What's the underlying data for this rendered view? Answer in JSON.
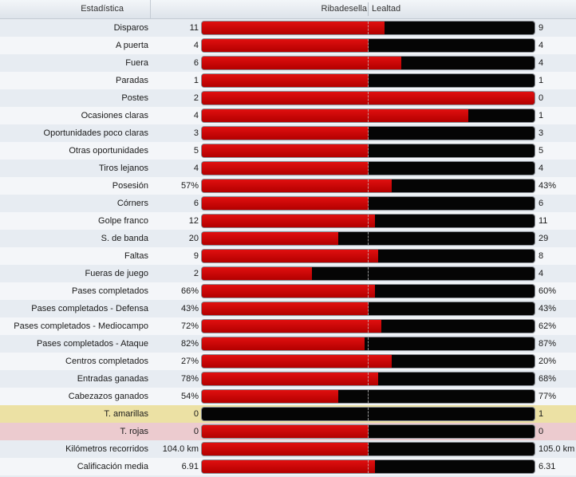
{
  "header": {
    "stat_label": "Estadística",
    "home_team": "Ribadesella",
    "away_team": "Lealtad"
  },
  "colors": {
    "home_bar": "#cc0000",
    "away_bar": "#000000",
    "yellow_card_row": "#ece1a4",
    "red_card_row": "#eccbcf"
  },
  "stats": [
    {
      "label": "Disparos",
      "home": "11",
      "away": "9",
      "home_share": 0.55,
      "highlight": ""
    },
    {
      "label": "A puerta",
      "home": "4",
      "away": "4",
      "home_share": 0.5,
      "highlight": ""
    },
    {
      "label": "Fuera",
      "home": "6",
      "away": "4",
      "home_share": 0.6,
      "highlight": ""
    },
    {
      "label": "Paradas",
      "home": "1",
      "away": "1",
      "home_share": 0.5,
      "highlight": ""
    },
    {
      "label": "Postes",
      "home": "2",
      "away": "0",
      "home_share": 1.0,
      "highlight": ""
    },
    {
      "label": "Ocasiones claras",
      "home": "4",
      "away": "1",
      "home_share": 0.8,
      "highlight": ""
    },
    {
      "label": "Oportunidades poco claras",
      "home": "3",
      "away": "3",
      "home_share": 0.5,
      "highlight": ""
    },
    {
      "label": "Otras oportunidades",
      "home": "5",
      "away": "5",
      "home_share": 0.5,
      "highlight": ""
    },
    {
      "label": "Tiros lejanos",
      "home": "4",
      "away": "4",
      "home_share": 0.5,
      "highlight": ""
    },
    {
      "label": "Posesión",
      "home": "57%",
      "away": "43%",
      "home_share": 0.57,
      "highlight": ""
    },
    {
      "label": "Córners",
      "home": "6",
      "away": "6",
      "home_share": 0.5,
      "highlight": ""
    },
    {
      "label": "Golpe franco",
      "home": "12",
      "away": "11",
      "home_share": 0.52,
      "highlight": ""
    },
    {
      "label": "S. de banda",
      "home": "20",
      "away": "29",
      "home_share": 0.41,
      "highlight": ""
    },
    {
      "label": "Faltas",
      "home": "9",
      "away": "8",
      "home_share": 0.53,
      "highlight": ""
    },
    {
      "label": "Fueras de juego",
      "home": "2",
      "away": "4",
      "home_share": 0.33,
      "highlight": ""
    },
    {
      "label": "Pases completados",
      "home": "66%",
      "away": "60%",
      "home_share": 0.52,
      "highlight": ""
    },
    {
      "label": "Pases completados - Defensa",
      "home": "43%",
      "away": "43%",
      "home_share": 0.5,
      "highlight": ""
    },
    {
      "label": "Pases completados - Mediocampo",
      "home": "72%",
      "away": "62%",
      "home_share": 0.54,
      "highlight": ""
    },
    {
      "label": "Pases completados - Ataque",
      "home": "82%",
      "away": "87%",
      "home_share": 0.49,
      "highlight": ""
    },
    {
      "label": "Centros completados",
      "home": "27%",
      "away": "20%",
      "home_share": 0.57,
      "highlight": ""
    },
    {
      "label": "Entradas ganadas",
      "home": "78%",
      "away": "68%",
      "home_share": 0.53,
      "highlight": ""
    },
    {
      "label": "Cabezazos ganados",
      "home": "54%",
      "away": "77%",
      "home_share": 0.41,
      "highlight": ""
    },
    {
      "label": "T. amarillas",
      "home": "0",
      "away": "1",
      "home_share": 0.0,
      "highlight": "yellow"
    },
    {
      "label": "T. rojas",
      "home": "0",
      "away": "0",
      "home_share": 0.5,
      "highlight": "red"
    },
    {
      "label": "Kilómetros recorridos",
      "home": "104.0 km",
      "away": "105.0 km",
      "home_share": 0.5,
      "highlight": ""
    },
    {
      "label": "Calificación media",
      "home": "6.91",
      "away": "6.31",
      "home_share": 0.52,
      "highlight": ""
    }
  ]
}
